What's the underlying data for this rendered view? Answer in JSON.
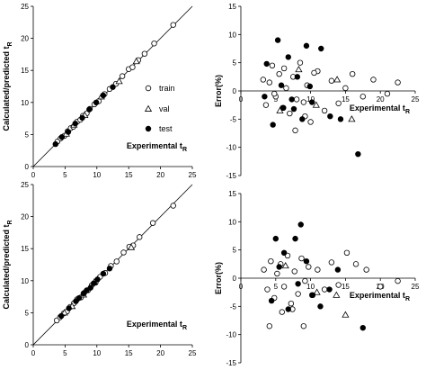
{
  "chart_data": [
    {
      "type": "scatter",
      "panel": "top-left",
      "xlabel_main": "Experimental t",
      "xlabel_sub": "R",
      "ylabel_main": "Calculated/predicted t",
      "ylabel_sub": "R",
      "xlim": [
        0,
        25
      ],
      "ylim": [
        0,
        25
      ],
      "xticks": [
        "0",
        "5",
        "10",
        "15",
        "20",
        "25"
      ],
      "yticks": [
        "0",
        "5",
        "10",
        "15",
        "20",
        "25"
      ],
      "identity_line": true,
      "legend": [
        "train",
        "val",
        "test"
      ],
      "legend_placement": "right-middle",
      "series": [
        {
          "name": "train",
          "marker": "open-circle",
          "x": [
            3.8,
            4.3,
            4.9,
            5.4,
            5.9,
            6.3,
            6.9,
            7.4,
            7.8,
            8.4,
            8.9,
            9.6,
            10.3,
            11.2,
            12.0,
            13.0,
            14.0,
            15.0,
            15.6,
            16.5,
            17.5,
            19.0,
            22.0
          ],
          "y": [
            3.9,
            4.4,
            4.8,
            5.5,
            6.0,
            6.2,
            7.0,
            7.3,
            7.9,
            8.3,
            9.0,
            9.7,
            10.2,
            11.3,
            12.1,
            12.9,
            14.1,
            15.2,
            15.5,
            16.6,
            17.6,
            19.2,
            22.1
          ]
        },
        {
          "name": "val",
          "marker": "open-triangle",
          "x": [
            5.2,
            6.4,
            8.1,
            10.7,
            13.5,
            16.2
          ],
          "y": [
            5.1,
            6.5,
            8.0,
            10.9,
            13.3,
            16.4
          ]
        },
        {
          "name": "test",
          "marker": "filled-circle",
          "x": [
            3.5,
            4.5,
            5.5,
            6.6,
            7.7,
            8.8,
            9.9,
            11.0,
            12.5
          ],
          "y": [
            3.5,
            4.6,
            5.4,
            6.7,
            7.6,
            8.9,
            10.0,
            11.1,
            12.4
          ]
        }
      ]
    },
    {
      "type": "scatter",
      "panel": "top-right",
      "xlabel_main": "Experimental t",
      "xlabel_sub": "R",
      "ylabel": "Error(%)",
      "xlim": [
        0,
        25
      ],
      "ylim": [
        -15,
        15
      ],
      "xticks": [
        "0",
        "5",
        "10",
        "15",
        "20",
        "25"
      ],
      "yticks": [
        "-15",
        "-10",
        "-5",
        "0",
        "5",
        "10",
        "15"
      ],
      "series": [
        {
          "name": "train",
          "marker": "open-circle",
          "x": [
            3.2,
            3.6,
            4.1,
            4.5,
            5.0,
            5.5,
            6.0,
            6.5,
            7.0,
            7.5,
            8.0,
            8.5,
            9.0,
            9.5,
            10.0,
            11.0,
            12.0,
            13.0,
            14.0,
            15.0,
            16.0,
            17.5,
            19.0,
            21.0,
            22.5,
            4.8,
            6.2,
            7.8,
            9.2,
            10.5
          ],
          "y": [
            2.0,
            -2.5,
            1.5,
            4.5,
            -1.0,
            3.0,
            -3.0,
            0.5,
            -4.0,
            2.5,
            -1.5,
            5.0,
            -2.0,
            1.0,
            -5.5,
            3.5,
            -3.5,
            1.8,
            -2.2,
            0.5,
            3.0,
            -1.0,
            2.0,
            -0.5,
            1.5,
            -0.5,
            4.0,
            -7.0,
            -4.5,
            3.2
          ]
        },
        {
          "name": "val",
          "marker": "open-triangle",
          "x": [
            5.6,
            8.3,
            10.8,
            13.8,
            15.9
          ],
          "y": [
            -3.5,
            3.8,
            -2.5,
            2.0,
            -5.0
          ]
        },
        {
          "name": "test",
          "marker": "filled-circle",
          "x": [
            3.7,
            4.6,
            5.3,
            6.1,
            6.8,
            7.3,
            8.1,
            8.8,
            9.4,
            10.2,
            11.5,
            12.8,
            14.3,
            16.8,
            3.4,
            5.8,
            7.6,
            9.9
          ],
          "y": [
            4.8,
            -6.0,
            9.0,
            -3.0,
            6.0,
            -1.5,
            2.5,
            -5.0,
            8.0,
            -2.0,
            7.5,
            -4.5,
            -5.0,
            -11.2,
            -1.0,
            1.0,
            -3.2,
            0.8
          ]
        }
      ]
    },
    {
      "type": "scatter",
      "panel": "bottom-left",
      "xlabel_main": "Experimental t",
      "xlabel_sub": "R",
      "ylabel_main": "Calculated/predicted t",
      "ylabel_sub": "R",
      "xlim": [
        0,
        25
      ],
      "ylim": [
        0,
        25
      ],
      "xticks": [
        "0",
        "5",
        "10",
        "15",
        "20",
        "25"
      ],
      "yticks": [
        "0",
        "5",
        "10",
        "15",
        "20",
        "25"
      ],
      "identity_line": true,
      "series": [
        {
          "name": "train",
          "marker": "open-circle",
          "x": [
            3.7,
            4.2,
            4.8,
            5.3,
            5.8,
            6.4,
            6.9,
            7.5,
            8.0,
            8.6,
            9.2,
            9.8,
            10.5,
            11.3,
            12.2,
            13.1,
            14.2,
            15.1,
            15.7,
            16.7,
            18.8,
            22.0
          ],
          "y": [
            3.8,
            4.3,
            4.9,
            5.2,
            5.9,
            6.5,
            7.1,
            7.4,
            8.1,
            8.5,
            9.3,
            9.7,
            10.6,
            11.2,
            12.3,
            13.0,
            14.4,
            15.3,
            15.5,
            16.8,
            19.0,
            21.7
          ]
        },
        {
          "name": "val",
          "marker": "open-triangle",
          "x": [
            4.9,
            6.1,
            7.9,
            9.6,
            15.4
          ],
          "y": [
            5.0,
            6.0,
            7.8,
            9.8,
            15.2
          ]
        },
        {
          "name": "test",
          "marker": "filled-circle",
          "x": [
            4.4,
            5.6,
            6.7,
            7.2,
            7.9,
            8.4,
            9.0,
            9.5,
            10.1,
            11.0,
            12.0
          ],
          "y": [
            4.5,
            5.7,
            6.8,
            7.3,
            8.0,
            8.5,
            8.9,
            9.6,
            10.2,
            11.1,
            11.9
          ]
        }
      ]
    },
    {
      "type": "scatter",
      "panel": "bottom-right",
      "xlabel_main": "Experimental t",
      "xlabel_sub": "R",
      "ylabel": "Error(%)",
      "xlim": [
        0,
        25
      ],
      "ylim": [
        -15,
        15
      ],
      "xticks": [
        "0",
        "5",
        "10",
        "15",
        "20",
        "25"
      ],
      "yticks": [
        "-15",
        "-10",
        "-5",
        "0",
        "5",
        "10",
        "15"
      ],
      "series": [
        {
          "name": "train",
          "marker": "open-circle",
          "x": [
            3.3,
            3.8,
            4.3,
            4.8,
            5.2,
            5.7,
            6.2,
            6.7,
            7.2,
            7.7,
            8.2,
            8.7,
            9.2,
            9.7,
            10.2,
            11.0,
            12.0,
            13.0,
            14.0,
            15.2,
            16.5,
            18.0,
            20.0,
            22.5,
            4.1,
            5.9,
            7.4,
            9.0
          ],
          "y": [
            1.5,
            -2.0,
            3.0,
            -3.5,
            0.8,
            2.5,
            -1.5,
            4.0,
            -4.5,
            1.2,
            -2.8,
            3.5,
            -0.5,
            2.0,
            -3.0,
            1.5,
            -2.0,
            2.8,
            -1.2,
            4.5,
            2.5,
            1.5,
            -1.5,
            -0.5,
            -8.5,
            -6.0,
            -5.5,
            -8.5
          ]
        },
        {
          "name": "val",
          "marker": "open-triangle",
          "x": [
            6.4,
            10.9,
            13.7,
            15.0
          ],
          "y": [
            2.2,
            -2.5,
            -3.0,
            -6.5
          ]
        },
        {
          "name": "test",
          "marker": "filled-circle",
          "x": [
            4.4,
            5.0,
            5.5,
            6.8,
            7.8,
            8.6,
            9.4,
            10.3,
            11.4,
            12.7,
            13.9,
            17.5,
            6.2,
            8.2
          ],
          "y": [
            -4.0,
            7.0,
            2.0,
            -5.5,
            7.0,
            9.5,
            3.0,
            -3.0,
            -5.0,
            -2.0,
            1.5,
            -8.8,
            4.5,
            -1.0
          ]
        }
      ]
    }
  ]
}
